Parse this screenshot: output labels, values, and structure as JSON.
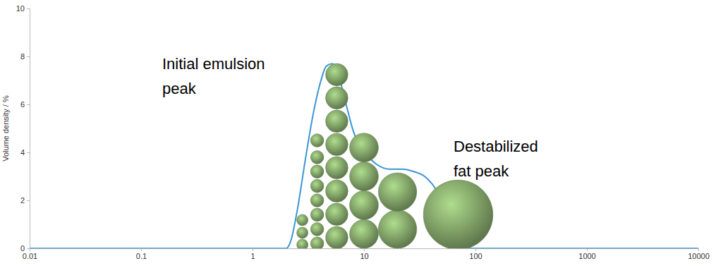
{
  "chart_data": {
    "type": "line",
    "y_label": "Volume density / %",
    "log": "x",
    "grid": false,
    "xlim": [
      0.01,
      10000
    ],
    "ylim": [
      0,
      10
    ],
    "xticks": [
      0.01,
      0.1,
      1,
      10,
      100,
      1000,
      10000
    ],
    "yticks": [
      0,
      2,
      4,
      6,
      8,
      10
    ],
    "x": [
      0.01,
      2.0,
      2.2,
      2.5,
      3,
      3.5,
      4,
      4.6,
      5.2,
      6,
      7,
      8,
      9,
      11,
      13,
      17,
      22,
      28,
      35,
      45,
      55,
      65,
      75,
      85,
      10000
    ],
    "values": [
      0,
      0,
      0.3,
      1.5,
      3.8,
      5.6,
      6.8,
      7.6,
      7.7,
      7.1,
      5.9,
      4.9,
      4.3,
      3.8,
      3.5,
      3.3,
      3.3,
      3.2,
      3.0,
      2.4,
      1.5,
      0.7,
      0.2,
      0,
      0
    ],
    "color": "#3b95d6",
    "bubbles": {
      "color": "#7fa066",
      "x": [
        2.8,
        2.8,
        2.8,
        3.8,
        3.8,
        3.8,
        3.8,
        3.8,
        3.8,
        3.8,
        3.8,
        5.7,
        5.7,
        5.7,
        5.7,
        5.7,
        5.7,
        5.7,
        5.7,
        10,
        10,
        10,
        10,
        20,
        20,
        70
      ],
      "y": [
        0.15,
        0.65,
        1.18,
        0.2,
        0.8,
        1.4,
        2.0,
        2.6,
        3.2,
        3.8,
        4.5,
        0.45,
        1.42,
        2.39,
        3.36,
        4.33,
        5.3,
        6.27,
        7.24,
        0.6,
        1.8,
        3.0,
        4.2,
        0.8,
        2.35,
        1.4
      ],
      "size": [
        0.47,
        0.47,
        0.47,
        0.55,
        0.55,
        0.55,
        0.55,
        0.55,
        0.55,
        0.55,
        0.55,
        0.93,
        0.93,
        0.93,
        0.93,
        0.93,
        0.93,
        0.93,
        0.93,
        1.2,
        1.2,
        1.2,
        1.2,
        1.6,
        1.6,
        2.9
      ]
    },
    "annotations": [
      {
        "lines": [
          "Initial emulsion",
          "peak"
        ]
      },
      {
        "lines": [
          "Destabilized",
          "fat peak"
        ]
      }
    ]
  }
}
